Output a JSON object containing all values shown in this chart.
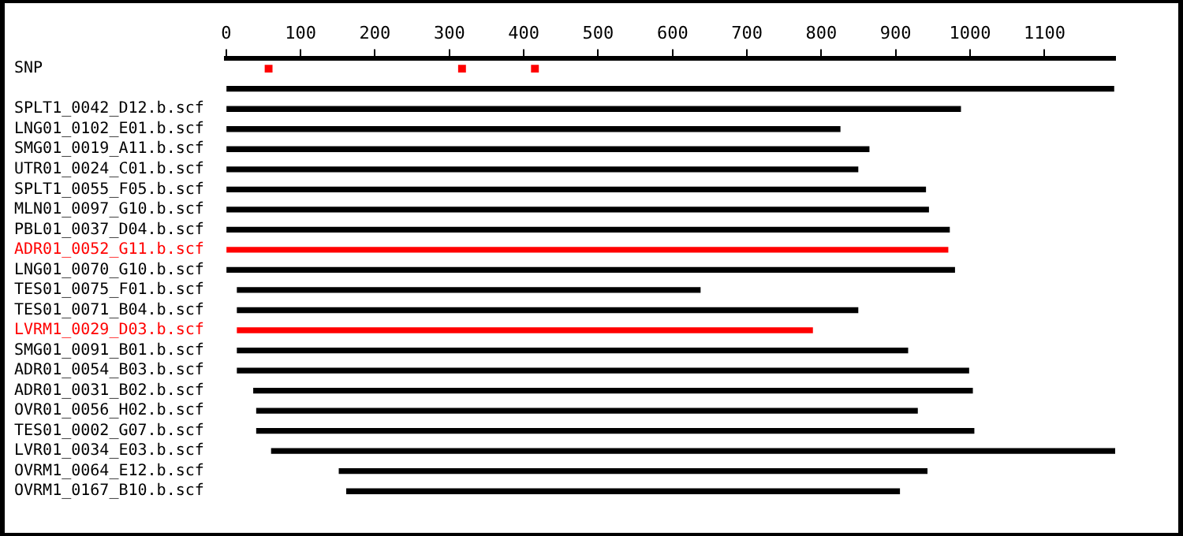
{
  "chart_data": {
    "type": "bar",
    "orientation": "horizontal",
    "categories": [
      "SNP",
      null,
      "SPLT1_0042_D12.b.scf",
      "LNG01_0102_E01.b.scf",
      "SMG01_0019_A11.b.scf",
      "UTR01_0024_C01.b.scf",
      "SPLT1_0055_F05.b.scf",
      "MLN01_0097_G10.b.scf",
      "PBL01_0037_D04.b.scf",
      "ADR01_0052_G11.b.scf",
      "LNG01_0070_G10.b.scf",
      "TES01_0075_F01.b.scf",
      "TES01_0071_B04.b.scf",
      "LVRM1_0029_D03.b.scf",
      "SMG01_0091_B01.b.scf",
      "ADR01_0054_B03.b.scf",
      "ADR01_0031_B02.b.scf",
      "OVR01_0056_H02.b.scf",
      "TES01_0002_G07.b.scf",
      "LVR01_0034_E03.b.scf",
      "OVRM1_0064_E12.b.scf",
      "OVRM1_0167_B10.b.scf"
    ],
    "series": [
      {
        "color": "#000000",
        "base": [
          null,
          0,
          0,
          0,
          0,
          0,
          0,
          0,
          0,
          0,
          0,
          15,
          15,
          15,
          15,
          15,
          37,
          41,
          41,
          61,
          152,
          162
        ],
        "values": [
          null,
          1193,
          987,
          825,
          864,
          849,
          940,
          944,
          972,
          970,
          979,
          622,
          834,
          773,
          901,
          983,
          966,
          888,
          964,
          1134,
          790,
          743
        ],
        "colors": [
          null,
          "#000000",
          "#000000",
          "#000000",
          "#000000",
          "#000000",
          "#000000",
          "#000000",
          "#000000",
          "#ff0000",
          "#000000",
          "#000000",
          "#000000",
          "#ff0000",
          "#000000",
          "#000000",
          "#000000",
          "#000000",
          "#000000",
          "#000000",
          "#000000",
          "#000000"
        ]
      },
      {
        "type": "scatter",
        "color": "#ff0000",
        "marker": "square",
        "x": [
          "SNP",
          "SNP",
          "SNP"
        ],
        "values": [
          57,
          317,
          415
        ]
      }
    ],
    "xlim": [
      0,
      1195
    ],
    "xticks": [
      0,
      100,
      200,
      300,
      400,
      500,
      600,
      700,
      800,
      900,
      1000,
      1100
    ],
    "grid": false,
    "legend": false
  }
}
